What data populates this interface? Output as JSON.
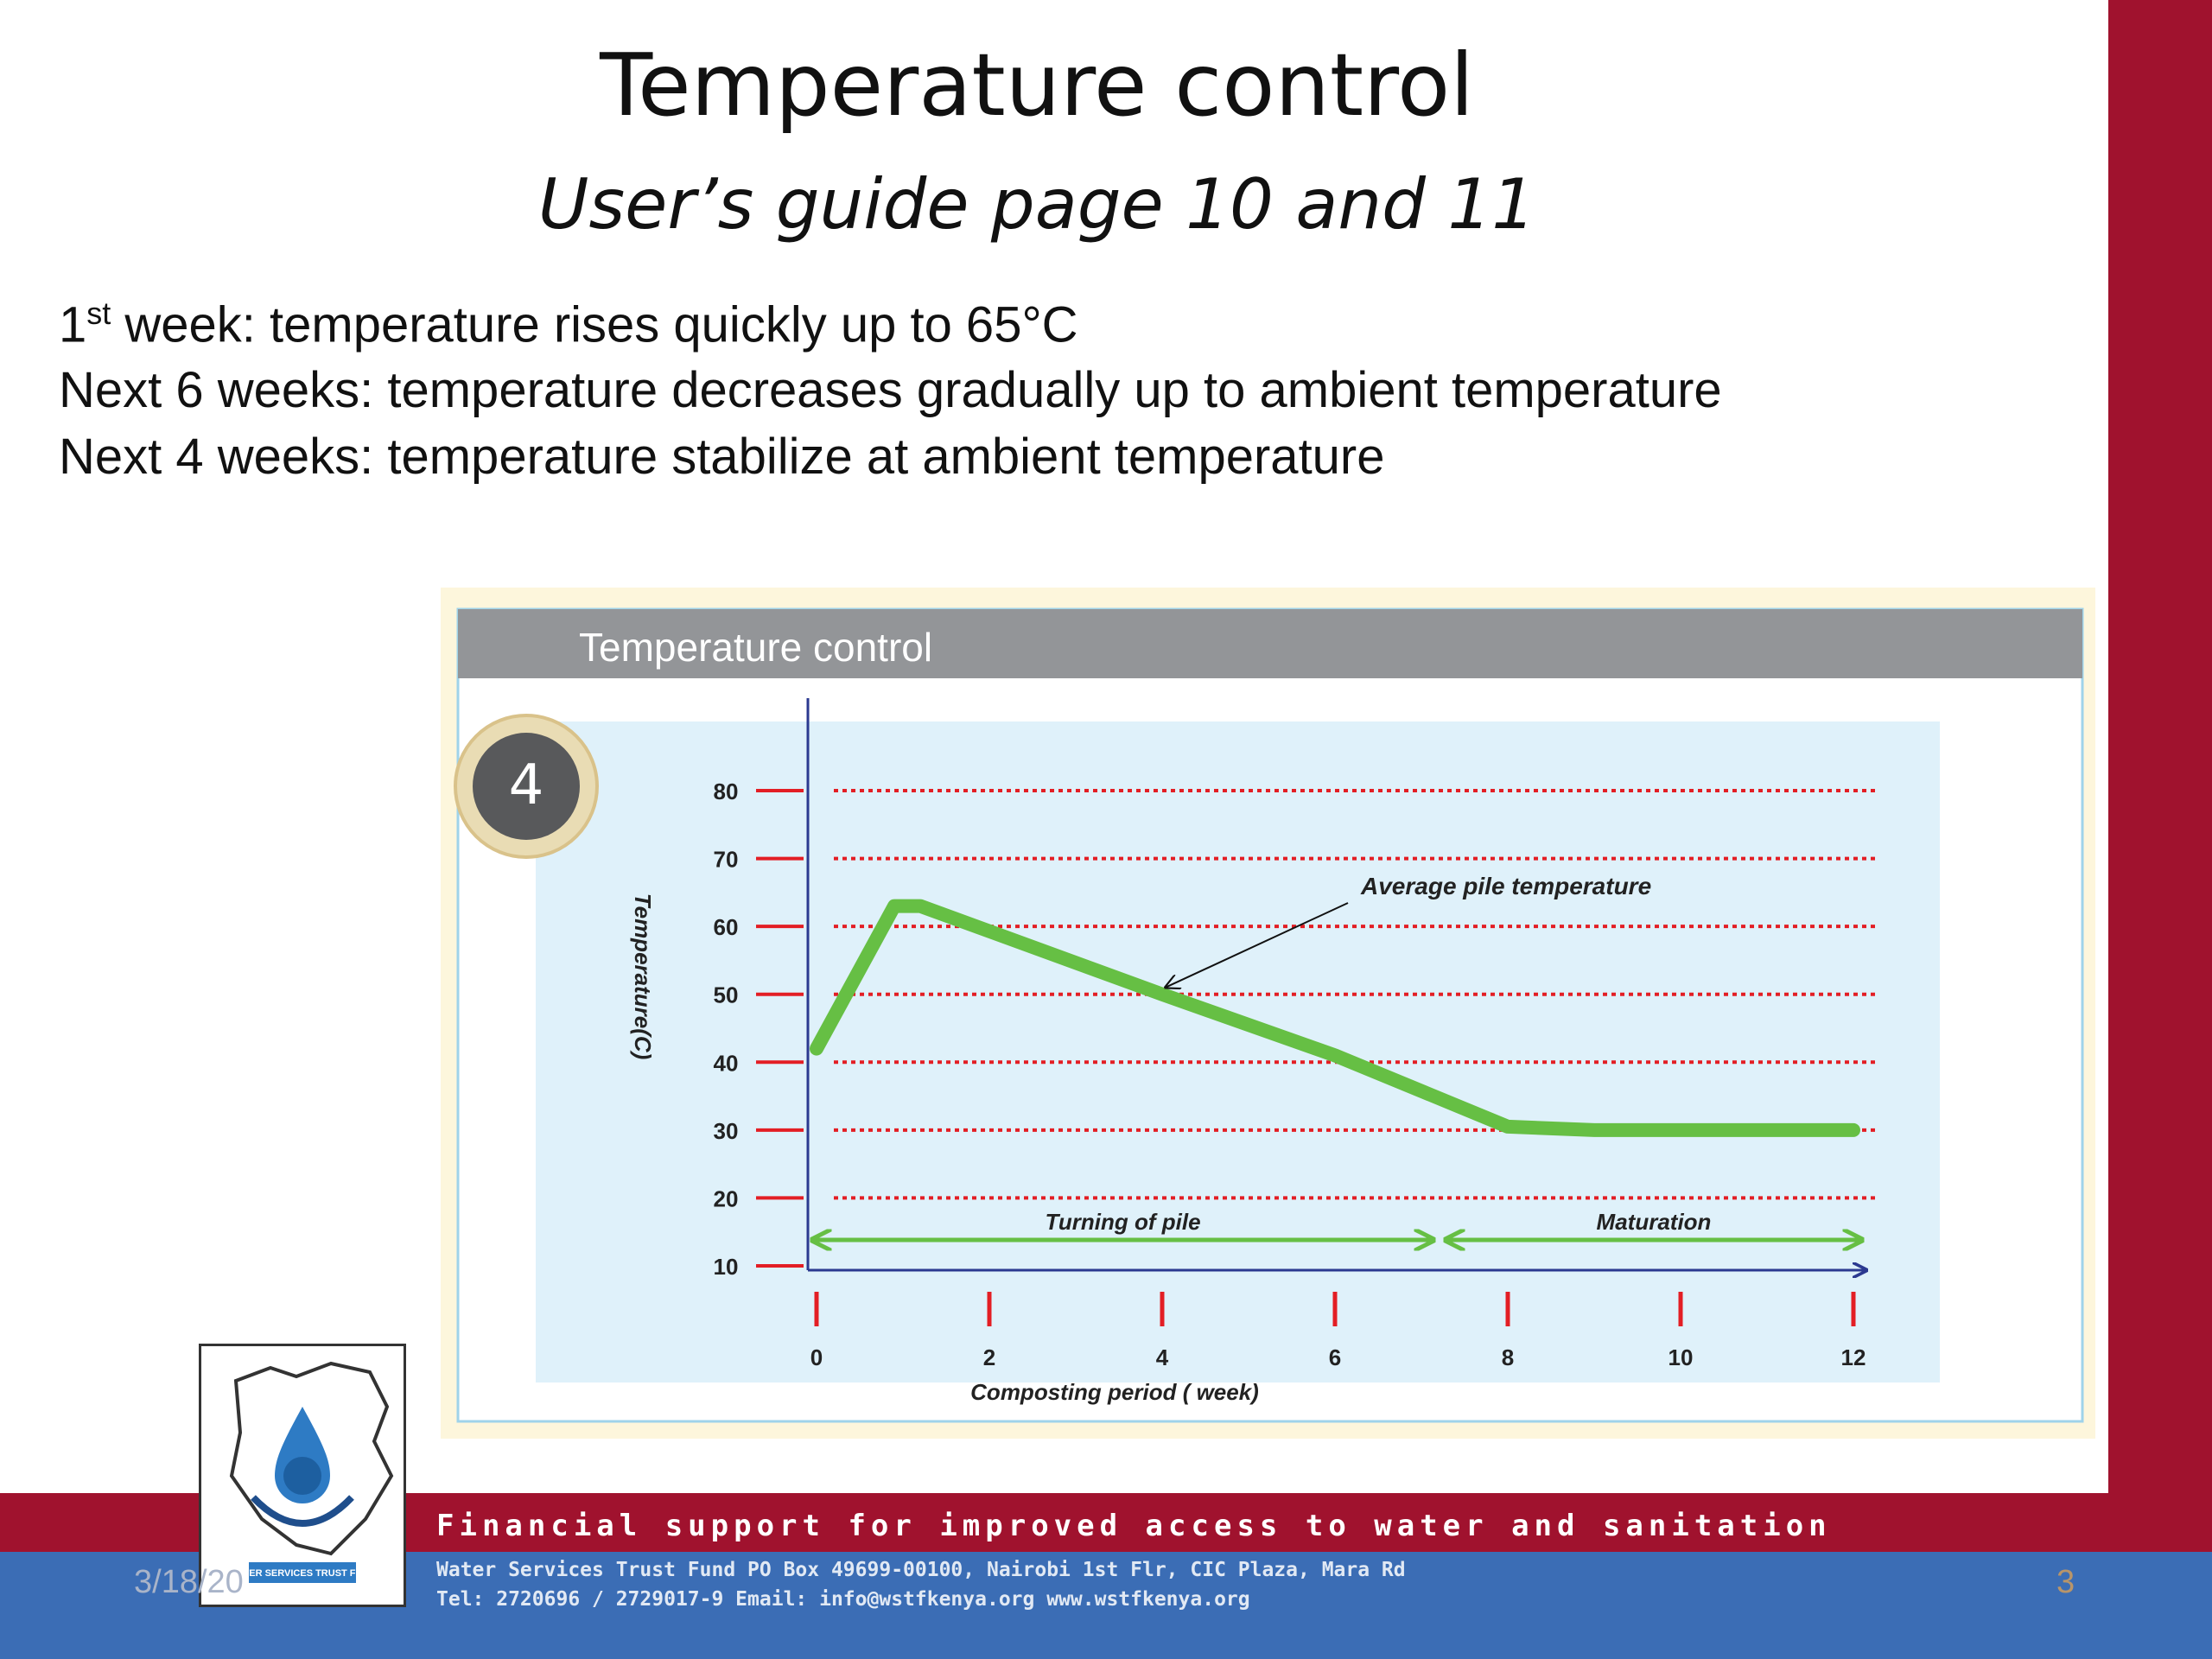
{
  "slide": {
    "title": "Temperature control",
    "subtitle": "User’s guide page 10 and 11",
    "bullets": [
      {
        "pre": "1",
        "sup": "st",
        "text": " week: temperature rises quickly up to 65°C"
      },
      {
        "pre": "",
        "sup": "",
        "text": "Next 6 weeks: temperature decreases gradually up to ambient temperature"
      },
      {
        "pre": "",
        "sup": "",
        "text": "Next 4 weeks: temperature stabilize at ambient temperature"
      }
    ],
    "date": "3/18/20",
    "page_number": "3"
  },
  "footer": {
    "tagline": "Financial support for improved access to water and sanitation",
    "line1": "Water Services Trust Fund   PO Box 49699-00100, Nairobi   1st Flr, CIC Plaza, Mara Rd",
    "line2": "Tel: 2720696 / 2729017-9    Email: info@wstfkenya.org     www.wstfkenya.org",
    "logo_text": "WATER SERVICES TRUST FUND"
  },
  "colors": {
    "maroon": "#a0122e",
    "blue": "#3b6db5",
    "chart_header": "#939598",
    "plot_bg": "#dff1fa",
    "line_green": "#66bf44",
    "gridline_red": "#e31e24",
    "axis_blue": "#2b3990"
  },
  "chart_data": {
    "type": "line",
    "title": "Temperature control",
    "badge": "4",
    "xlabel": "Composting period ( week)",
    "ylabel": "Temperature(C)",
    "xlim": [
      0,
      12
    ],
    "ylim": [
      10,
      80
    ],
    "xticks": [
      0,
      2,
      4,
      6,
      8,
      10,
      12
    ],
    "yticks": [
      10,
      20,
      30,
      40,
      50,
      60,
      70,
      80
    ],
    "grid": true,
    "series": [
      {
        "name": "Average pile temperature",
        "x": [
          0,
          0.9,
          1.2,
          4,
          6,
          8,
          9,
          12
        ],
        "y": [
          42,
          63,
          63,
          50,
          41,
          30.5,
          30,
          30
        ]
      }
    ],
    "annotations": [
      {
        "text": "Average pile temperature",
        "x": 4,
        "y": 50
      },
      {
        "text": "Turning of pile",
        "x_range": [
          0,
          7.2
        ]
      },
      {
        "text": "Maturation",
        "x_range": [
          7.2,
          12
        ]
      }
    ]
  }
}
